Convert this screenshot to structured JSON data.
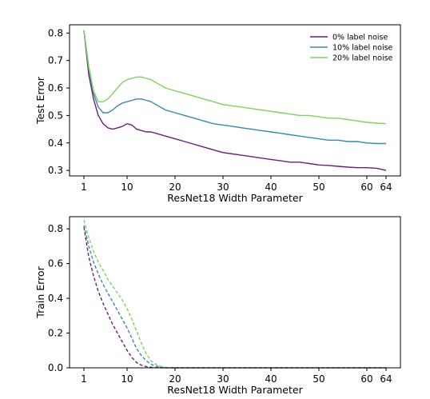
{
  "colors": {
    "s0": "#6b1f7a",
    "s10": "#3a89a8",
    "s20": "#7fd160"
  },
  "chart_data": [
    {
      "type": "line",
      "xlabel": "ResNet18 Width Parameter",
      "ylabel": "Test Error",
      "xlim": [
        -2,
        67
      ],
      "ylim": [
        0.28,
        0.83
      ],
      "xticks": [
        1,
        10,
        20,
        30,
        40,
        50,
        60,
        64
      ],
      "yticks": [
        0.3,
        0.4,
        0.5,
        0.6,
        0.7,
        0.8
      ],
      "ytick_labels": [
        "0.3",
        "0.4",
        "0.5",
        "0.6",
        "0.7",
        "0.8"
      ],
      "line_style": "solid",
      "legend_position": "top-right",
      "series": [
        {
          "name": "0% label noise",
          "color_key": "s0",
          "x": [
            1,
            2,
            3,
            4,
            5,
            6,
            7,
            8,
            9,
            10,
            11,
            12,
            13,
            14,
            15,
            16,
            18,
            20,
            22,
            24,
            26,
            28,
            30,
            32,
            34,
            36,
            38,
            40,
            42,
            44,
            46,
            48,
            50,
            52,
            54,
            56,
            58,
            60,
            62,
            64
          ],
          "y": [
            0.81,
            0.65,
            0.56,
            0.5,
            0.47,
            0.455,
            0.45,
            0.455,
            0.46,
            0.47,
            0.465,
            0.45,
            0.445,
            0.44,
            0.44,
            0.435,
            0.425,
            0.415,
            0.405,
            0.395,
            0.385,
            0.375,
            0.365,
            0.36,
            0.355,
            0.35,
            0.345,
            0.34,
            0.335,
            0.33,
            0.33,
            0.325,
            0.32,
            0.318,
            0.315,
            0.312,
            0.31,
            0.31,
            0.308,
            0.3
          ]
        },
        {
          "name": "10% label noise",
          "color_key": "s10",
          "x": [
            1,
            2,
            3,
            4,
            5,
            6,
            7,
            8,
            9,
            10,
            11,
            12,
            13,
            14,
            15,
            16,
            18,
            20,
            22,
            24,
            26,
            28,
            30,
            32,
            34,
            36,
            38,
            40,
            42,
            44,
            46,
            48,
            50,
            52,
            54,
            56,
            58,
            60,
            62,
            64
          ],
          "y": [
            0.81,
            0.67,
            0.58,
            0.53,
            0.51,
            0.51,
            0.52,
            0.535,
            0.545,
            0.55,
            0.555,
            0.56,
            0.56,
            0.555,
            0.55,
            0.54,
            0.52,
            0.51,
            0.5,
            0.49,
            0.48,
            0.47,
            0.465,
            0.46,
            0.455,
            0.45,
            0.445,
            0.44,
            0.435,
            0.43,
            0.425,
            0.42,
            0.415,
            0.41,
            0.41,
            0.405,
            0.405,
            0.4,
            0.398,
            0.398
          ]
        },
        {
          "name": "20% label noise",
          "color_key": "s20",
          "x": [
            1,
            2,
            3,
            4,
            5,
            6,
            7,
            8,
            9,
            10,
            11,
            12,
            13,
            14,
            15,
            16,
            18,
            20,
            22,
            24,
            26,
            28,
            30,
            32,
            34,
            36,
            38,
            40,
            42,
            44,
            46,
            48,
            50,
            52,
            54,
            56,
            58,
            60,
            62,
            64
          ],
          "y": [
            0.81,
            0.68,
            0.59,
            0.55,
            0.55,
            0.56,
            0.58,
            0.6,
            0.62,
            0.63,
            0.635,
            0.64,
            0.64,
            0.635,
            0.63,
            0.62,
            0.6,
            0.59,
            0.58,
            0.57,
            0.56,
            0.55,
            0.54,
            0.535,
            0.53,
            0.525,
            0.52,
            0.515,
            0.51,
            0.505,
            0.5,
            0.5,
            0.495,
            0.49,
            0.49,
            0.485,
            0.48,
            0.475,
            0.472,
            0.47
          ]
        }
      ]
    },
    {
      "type": "line",
      "xlabel": "ResNet18 Width Parameter",
      "ylabel": "Train Error",
      "xlim": [
        -2,
        67
      ],
      "ylim": [
        0.0,
        0.87
      ],
      "xticks": [
        1,
        10,
        20,
        30,
        40,
        50,
        60,
        64
      ],
      "yticks": [
        0.0,
        0.2,
        0.4,
        0.6,
        0.8
      ],
      "ytick_labels": [
        "0.0",
        "0.2",
        "0.4",
        "0.6",
        "0.8"
      ],
      "line_style": "dashed",
      "series": [
        {
          "color_key": "s0",
          "x": [
            1,
            2,
            3,
            4,
            5,
            6,
            7,
            8,
            9,
            10,
            11,
            12,
            13,
            14,
            15,
            16,
            18,
            20,
            25,
            30,
            40,
            50,
            64
          ],
          "y": [
            0.81,
            0.64,
            0.53,
            0.44,
            0.37,
            0.31,
            0.25,
            0.2,
            0.15,
            0.1,
            0.06,
            0.03,
            0.015,
            0.007,
            0.003,
            0.001,
            0,
            0,
            0,
            0,
            0,
            0,
            0
          ]
        },
        {
          "color_key": "s10",
          "x": [
            1,
            2,
            3,
            4,
            5,
            6,
            7,
            8,
            9,
            10,
            11,
            12,
            13,
            14,
            15,
            16,
            17,
            18,
            20,
            25,
            30,
            40,
            50,
            64
          ],
          "y": [
            0.82,
            0.7,
            0.61,
            0.54,
            0.48,
            0.43,
            0.38,
            0.33,
            0.28,
            0.23,
            0.17,
            0.11,
            0.07,
            0.04,
            0.02,
            0.01,
            0.004,
            0.001,
            0,
            0,
            0,
            0,
            0,
            0
          ]
        },
        {
          "color_key": "s20",
          "x": [
            1,
            2,
            3,
            4,
            5,
            6,
            7,
            8,
            9,
            10,
            11,
            12,
            13,
            14,
            15,
            16,
            17,
            18,
            19,
            20,
            25,
            30,
            40,
            50,
            64
          ],
          "y": [
            0.85,
            0.75,
            0.67,
            0.61,
            0.56,
            0.51,
            0.47,
            0.43,
            0.39,
            0.34,
            0.28,
            0.21,
            0.14,
            0.08,
            0.04,
            0.02,
            0.008,
            0.003,
            0.001,
            0,
            0,
            0,
            0,
            0,
            0
          ]
        }
      ]
    }
  ]
}
